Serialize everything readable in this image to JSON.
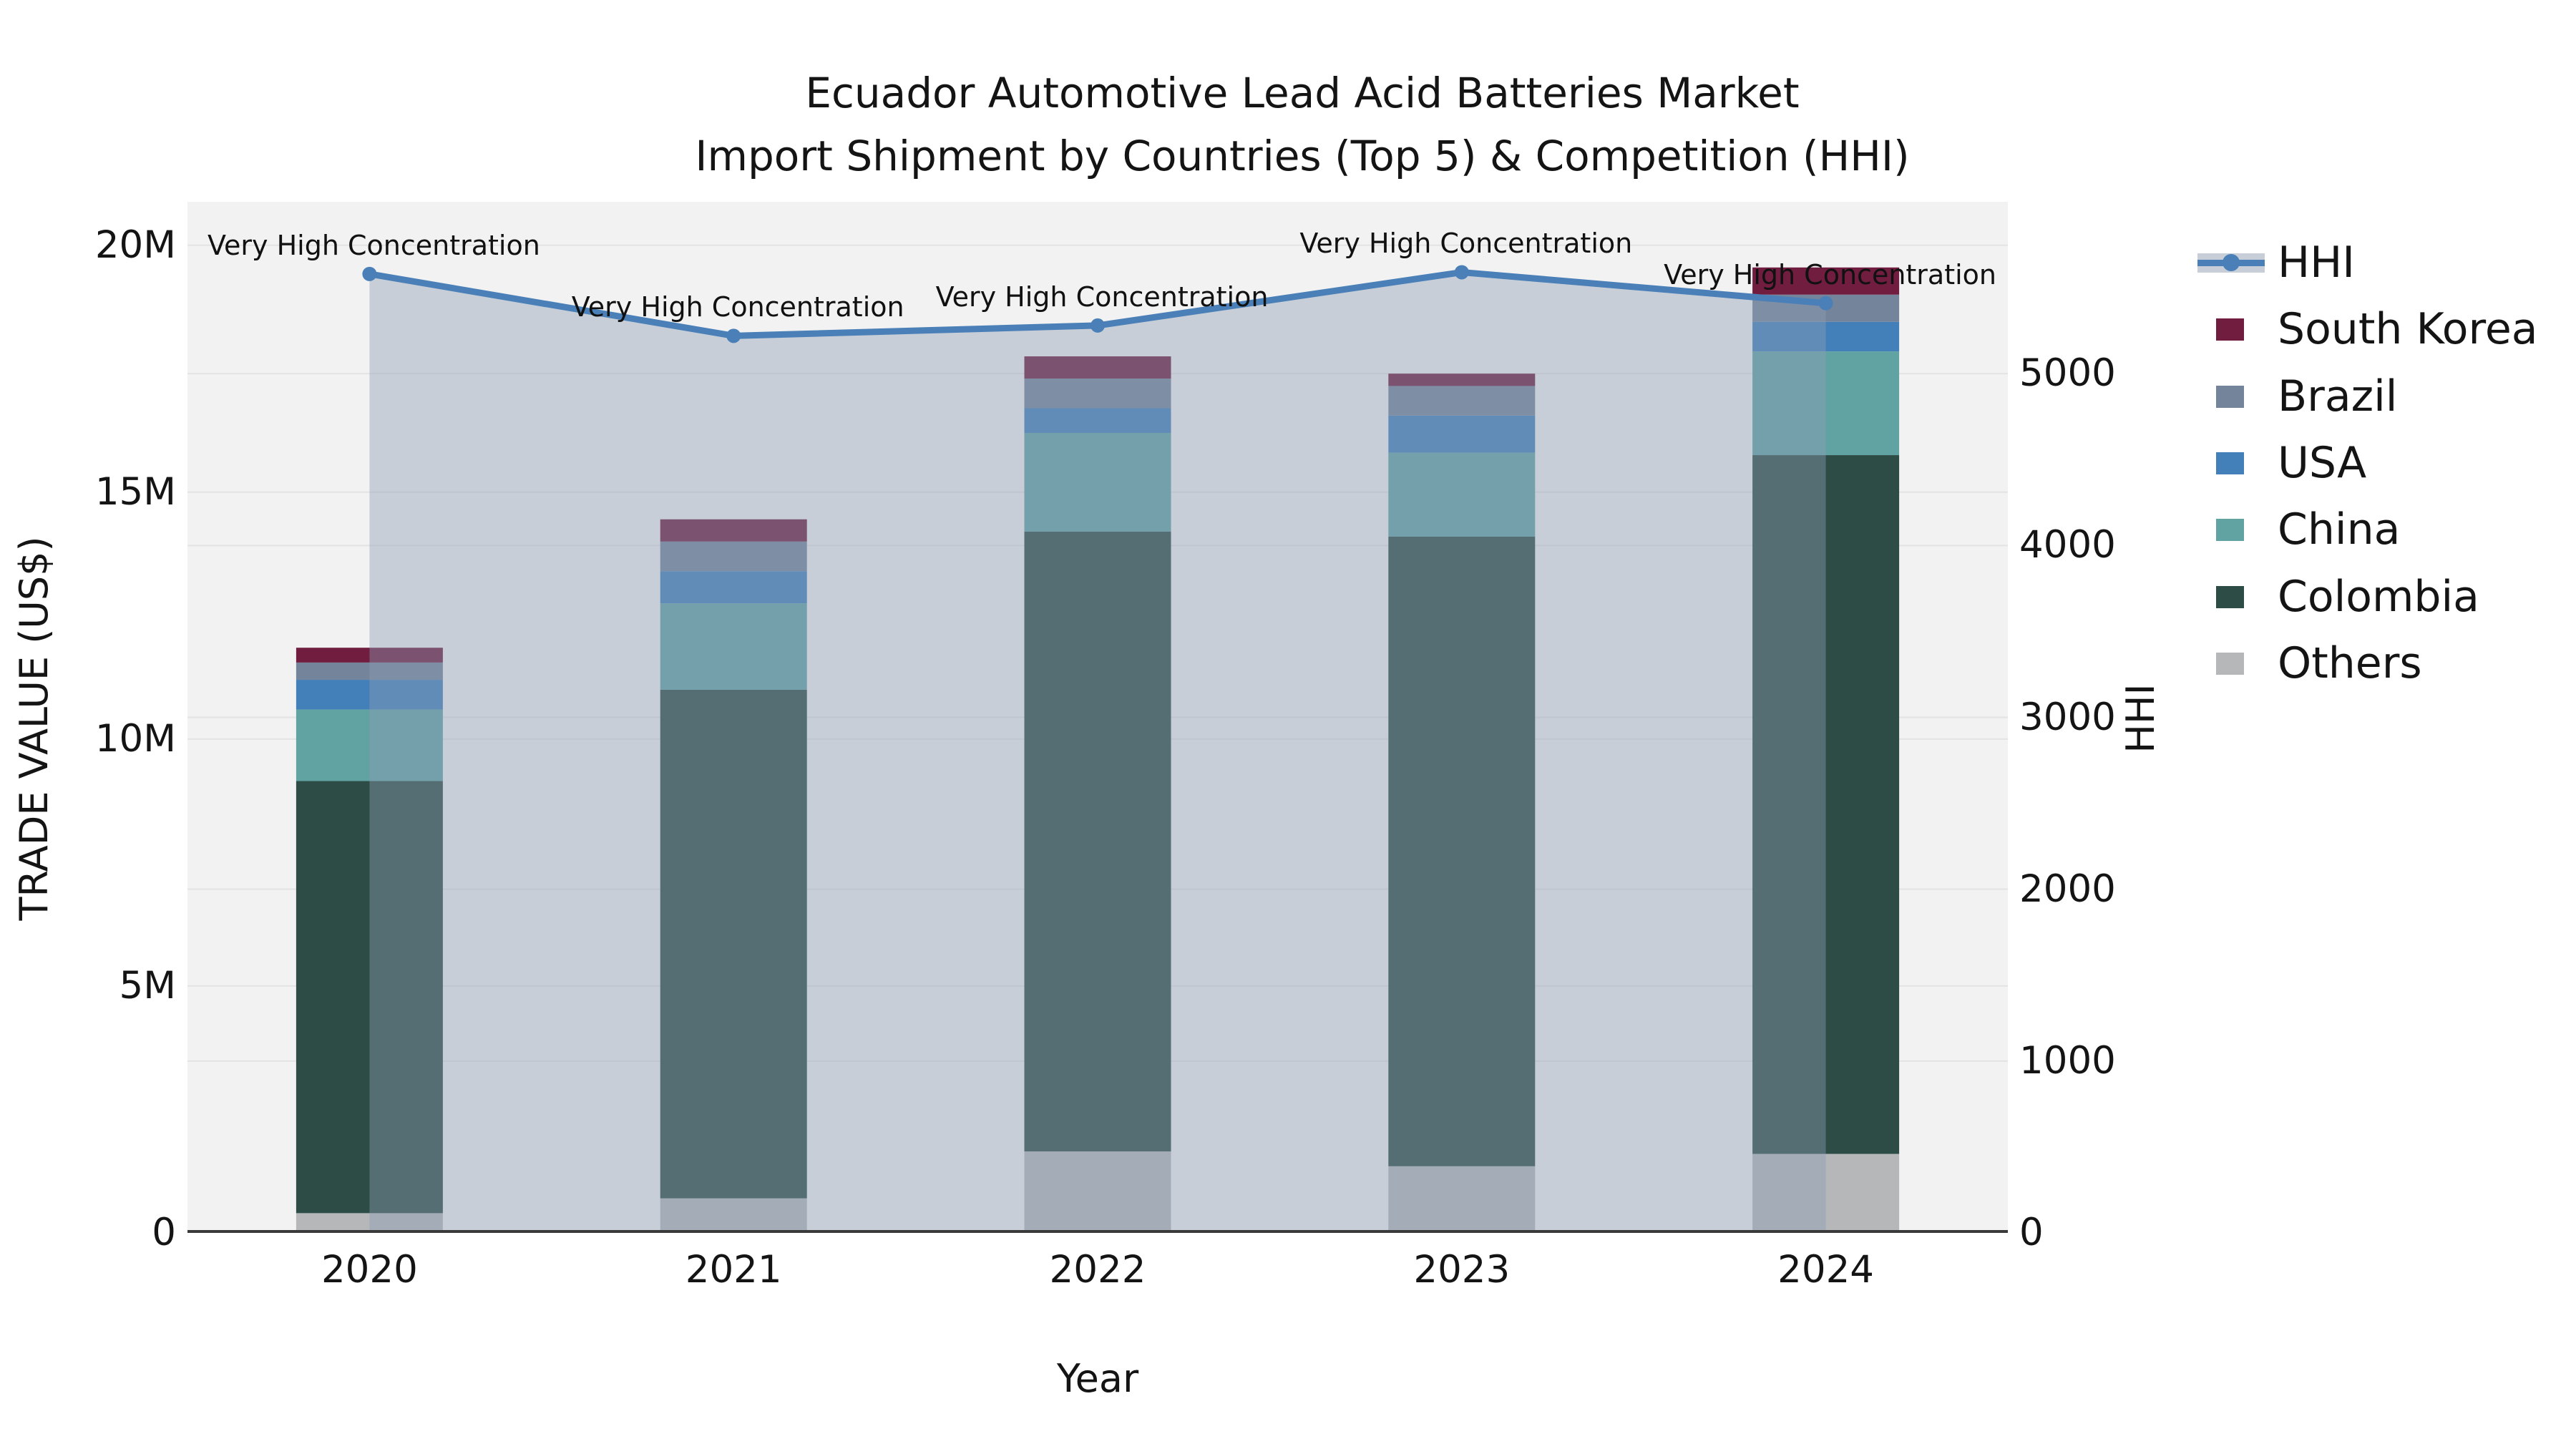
{
  "title": {
    "line1": "Ecuador Automotive Lead Acid Batteries Market",
    "line2": "Import Shipment by Countries (Top 5) & Competition (HHI)"
  },
  "chart_data": {
    "type": "bar",
    "subtype": "stacked-bars-with-line-overlay",
    "categories": [
      "2020",
      "2021",
      "2022",
      "2023",
      "2024"
    ],
    "series": [
      {
        "name": "Others",
        "color": "#b5b7b8",
        "values": [
          400000,
          700000,
          1650000,
          1350000,
          1600000
        ]
      },
      {
        "name": "Colombia",
        "color": "#2e4c46",
        "values": [
          8750000,
          10300000,
          12550000,
          12750000,
          14150000
        ]
      },
      {
        "name": "China",
        "color": "#61a3a3",
        "values": [
          1450000,
          1750000,
          2000000,
          1700000,
          2100000
        ]
      },
      {
        "name": "USA",
        "color": "#4380b9",
        "values": [
          600000,
          650000,
          500000,
          750000,
          600000
        ]
      },
      {
        "name": "Brazil",
        "color": "#74849a",
        "values": [
          350000,
          600000,
          600000,
          600000,
          550000
        ]
      },
      {
        "name": "South Korea",
        "color": "#701d40",
        "values": [
          300000,
          450000,
          450000,
          250000,
          550000
        ]
      }
    ],
    "line_series": {
      "name": "HHI",
      "color": "#4a80b7",
      "fill_to_zero": true,
      "fill_color": "rgba(140,158,180,0.42)",
      "axis": "right",
      "values": [
        5580,
        5220,
        5280,
        5590,
        5410
      ]
    },
    "annotations": [
      {
        "category": "2020",
        "text": "Very High Concentration"
      },
      {
        "category": "2021",
        "text": "Very High Concentration"
      },
      {
        "category": "2022",
        "text": "Very High Concentration"
      },
      {
        "category": "2023",
        "text": "Very High Concentration"
      },
      {
        "category": "2024",
        "text": "Very High Concentration"
      }
    ],
    "left_axis": {
      "title": "TRADE VALUE (US$)",
      "range": [
        0,
        20880000
      ],
      "ticks": [
        {
          "value": 0,
          "label": "0"
        },
        {
          "value": 5000000,
          "label": "5M"
        },
        {
          "value": 10000000,
          "label": "10M"
        },
        {
          "value": 15000000,
          "label": "15M"
        },
        {
          "value": 20000000,
          "label": "20M"
        }
      ]
    },
    "right_axis": {
      "title": "HHI",
      "range": [
        0,
        6000
      ],
      "ticks": [
        {
          "value": 0,
          "label": "0"
        },
        {
          "value": 1000,
          "label": "1000"
        },
        {
          "value": 2000,
          "label": "2000"
        },
        {
          "value": 3000,
          "label": "3000"
        },
        {
          "value": 4000,
          "label": "4000"
        },
        {
          "value": 5000,
          "label": "5000"
        }
      ]
    },
    "x_axis": {
      "title": "Year"
    },
    "legend": {
      "position": "right",
      "items": [
        "HHI",
        "South Korea",
        "Brazil",
        "USA",
        "China",
        "Colombia",
        "Others"
      ]
    },
    "style": {
      "plot_background": "#f2f2f2",
      "grid_color": "#e3e3e3",
      "baseline_color": "#3a3a3a",
      "text_color": "#141414"
    }
  }
}
